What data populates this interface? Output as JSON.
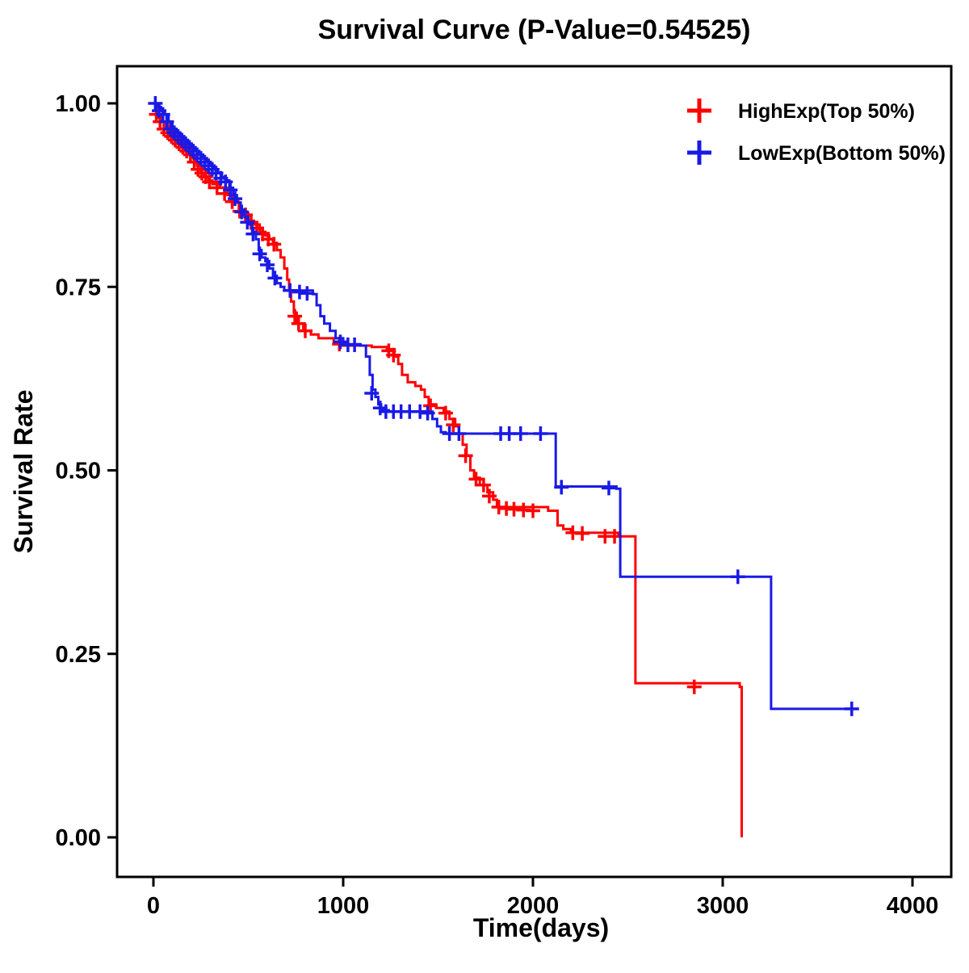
{
  "figure": {
    "background": "#ffffff",
    "border_color": "#000000",
    "text_color": "#000000"
  },
  "chart_data": {
    "type": "line",
    "subtype": "kaplan-meier-step-survival",
    "title": "Survival Curve (P-Value=0.54525)",
    "p_value": "0.54525",
    "xlabel": "Time(days)",
    "ylabel": "Survival Rate",
    "xlim": [
      0,
      4000
    ],
    "ylim": [
      0.0,
      1.0
    ],
    "x_ticks": [
      0,
      1000,
      2000,
      3000,
      4000
    ],
    "y_ticks": [
      {
        "value": 0.0,
        "label": "0.00"
      },
      {
        "value": 0.25,
        "label": "0.25"
      },
      {
        "value": 0.5,
        "label": "0.50"
      },
      {
        "value": 0.75,
        "label": "0.75"
      },
      {
        "value": 1.0,
        "label": "1.00"
      }
    ],
    "grid": false,
    "legend_position": "top-right",
    "legend": [
      {
        "label": "HighExp(Top 50%)",
        "color": "#ff0000",
        "marker": "plus"
      },
      {
        "label": "LowExp(Bottom 50%)",
        "color": "#1a1ae6",
        "marker": "plus"
      }
    ],
    "series": [
      {
        "name": "HighExp(Top 50%)",
        "color": "#ff0000",
        "steps": [
          [
            0,
            0.99
          ],
          [
            25,
            0.98
          ],
          [
            50,
            0.975
          ],
          [
            75,
            0.965
          ],
          [
            100,
            0.955
          ],
          [
            130,
            0.95
          ],
          [
            160,
            0.94
          ],
          [
            190,
            0.935
          ],
          [
            210,
            0.925
          ],
          [
            230,
            0.915
          ],
          [
            250,
            0.905
          ],
          [
            270,
            0.9
          ],
          [
            290,
            0.895
          ],
          [
            310,
            0.89
          ],
          [
            350,
            0.885
          ],
          [
            390,
            0.875
          ],
          [
            420,
            0.865
          ],
          [
            450,
            0.855
          ],
          [
            480,
            0.85
          ],
          [
            500,
            0.84
          ],
          [
            530,
            0.835
          ],
          [
            560,
            0.825
          ],
          [
            590,
            0.82
          ],
          [
            610,
            0.815
          ],
          [
            630,
            0.81
          ],
          [
            650,
            0.8
          ],
          [
            670,
            0.79
          ],
          [
            690,
            0.775
          ],
          [
            705,
            0.76
          ],
          [
            715,
            0.745
          ],
          [
            725,
            0.73
          ],
          [
            740,
            0.715
          ],
          [
            755,
            0.7
          ],
          [
            790,
            0.69
          ],
          [
            830,
            0.685
          ],
          [
            870,
            0.68
          ],
          [
            950,
            0.675
          ],
          [
            1000,
            0.67
          ],
          [
            1150,
            0.668
          ],
          [
            1230,
            0.665
          ],
          [
            1270,
            0.655
          ],
          [
            1290,
            0.645
          ],
          [
            1310,
            0.63
          ],
          [
            1340,
            0.62
          ],
          [
            1380,
            0.615
          ],
          [
            1410,
            0.61
          ],
          [
            1430,
            0.6
          ],
          [
            1450,
            0.59
          ],
          [
            1490,
            0.585
          ],
          [
            1530,
            0.58
          ],
          [
            1560,
            0.57
          ],
          [
            1590,
            0.56
          ],
          [
            1610,
            0.55
          ],
          [
            1630,
            0.535
          ],
          [
            1650,
            0.52
          ],
          [
            1670,
            0.5
          ],
          [
            1690,
            0.49
          ],
          [
            1720,
            0.48
          ],
          [
            1760,
            0.47
          ],
          [
            1790,
            0.46
          ],
          [
            1810,
            0.45
          ],
          [
            2080,
            0.445
          ],
          [
            2130,
            0.425
          ],
          [
            2160,
            0.42
          ],
          [
            2200,
            0.415
          ],
          [
            2450,
            0.41
          ],
          [
            2540,
            0.21
          ],
          [
            3090,
            0.205
          ],
          [
            3100,
            0.0
          ]
        ],
        "censors": [
          [
            15,
            0.985
          ],
          [
            35,
            0.975
          ],
          [
            55,
            0.965
          ],
          [
            75,
            0.96
          ],
          [
            95,
            0.955
          ],
          [
            115,
            0.95
          ],
          [
            135,
            0.945
          ],
          [
            155,
            0.94
          ],
          [
            175,
            0.935
          ],
          [
            195,
            0.93
          ],
          [
            215,
            0.92
          ],
          [
            235,
            0.91
          ],
          [
            255,
            0.905
          ],
          [
            275,
            0.9
          ],
          [
            295,
            0.893
          ],
          [
            335,
            0.885
          ],
          [
            375,
            0.877
          ],
          [
            415,
            0.866
          ],
          [
            455,
            0.853
          ],
          [
            485,
            0.848
          ],
          [
            515,
            0.838
          ],
          [
            545,
            0.83
          ],
          [
            575,
            0.822
          ],
          [
            605,
            0.815
          ],
          [
            635,
            0.808
          ],
          [
            745,
            0.71
          ],
          [
            765,
            0.7
          ],
          [
            800,
            0.69
          ],
          [
            980,
            0.672
          ],
          [
            1240,
            0.663
          ],
          [
            1265,
            0.657
          ],
          [
            1460,
            0.588
          ],
          [
            1540,
            0.578
          ],
          [
            1580,
            0.562
          ],
          [
            1645,
            0.52
          ],
          [
            1700,
            0.488
          ],
          [
            1740,
            0.48
          ],
          [
            1770,
            0.465
          ],
          [
            1820,
            0.45
          ],
          [
            1860,
            0.448
          ],
          [
            1900,
            0.447
          ],
          [
            1950,
            0.446
          ],
          [
            2000,
            0.445
          ],
          [
            2210,
            0.415
          ],
          [
            2260,
            0.414
          ],
          [
            2380,
            0.41
          ],
          [
            2430,
            0.41
          ],
          [
            2850,
            0.205
          ]
        ]
      },
      {
        "name": "LowExp(Bottom 50%)",
        "color": "#1a1ae6",
        "steps": [
          [
            0,
            1.0
          ],
          [
            20,
            0.995
          ],
          [
            40,
            0.99
          ],
          [
            60,
            0.985
          ],
          [
            80,
            0.975
          ],
          [
            100,
            0.965
          ],
          [
            120,
            0.96
          ],
          [
            140,
            0.955
          ],
          [
            160,
            0.95
          ],
          [
            180,
            0.945
          ],
          [
            200,
            0.94
          ],
          [
            220,
            0.935
          ],
          [
            240,
            0.93
          ],
          [
            260,
            0.925
          ],
          [
            280,
            0.92
          ],
          [
            300,
            0.915
          ],
          [
            320,
            0.91
          ],
          [
            340,
            0.905
          ],
          [
            360,
            0.9
          ],
          [
            380,
            0.895
          ],
          [
            400,
            0.885
          ],
          [
            420,
            0.875
          ],
          [
            440,
            0.865
          ],
          [
            460,
            0.855
          ],
          [
            480,
            0.845
          ],
          [
            500,
            0.835
          ],
          [
            520,
            0.825
          ],
          [
            540,
            0.815
          ],
          [
            555,
            0.8
          ],
          [
            570,
            0.79
          ],
          [
            590,
            0.785
          ],
          [
            610,
            0.775
          ],
          [
            630,
            0.765
          ],
          [
            650,
            0.755
          ],
          [
            670,
            0.75
          ],
          [
            690,
            0.745
          ],
          [
            840,
            0.74
          ],
          [
            860,
            0.725
          ],
          [
            880,
            0.71
          ],
          [
            900,
            0.7
          ],
          [
            930,
            0.69
          ],
          [
            960,
            0.68
          ],
          [
            1000,
            0.672
          ],
          [
            1090,
            0.67
          ],
          [
            1120,
            0.655
          ],
          [
            1140,
            0.63
          ],
          [
            1155,
            0.61
          ],
          [
            1170,
            0.6
          ],
          [
            1185,
            0.59
          ],
          [
            1200,
            0.582
          ],
          [
            1240,
            0.58
          ],
          [
            1470,
            0.57
          ],
          [
            1495,
            0.56
          ],
          [
            1515,
            0.552
          ],
          [
            1540,
            0.55
          ],
          [
            2100,
            0.55
          ],
          [
            2120,
            0.478
          ],
          [
            2440,
            0.475
          ],
          [
            2460,
            0.355
          ],
          [
            3240,
            0.355
          ],
          [
            3255,
            0.175
          ],
          [
            3690,
            0.175
          ]
        ],
        "censors": [
          [
            10,
            1.0
          ],
          [
            30,
            0.99
          ],
          [
            50,
            0.985
          ],
          [
            70,
            0.975
          ],
          [
            90,
            0.965
          ],
          [
            110,
            0.96
          ],
          [
            130,
            0.955
          ],
          [
            150,
            0.95
          ],
          [
            170,
            0.945
          ],
          [
            190,
            0.94
          ],
          [
            210,
            0.935
          ],
          [
            230,
            0.93
          ],
          [
            250,
            0.925
          ],
          [
            270,
            0.92
          ],
          [
            290,
            0.915
          ],
          [
            310,
            0.91
          ],
          [
            330,
            0.905
          ],
          [
            355,
            0.898
          ],
          [
            380,
            0.893
          ],
          [
            405,
            0.882
          ],
          [
            430,
            0.87
          ],
          [
            465,
            0.852
          ],
          [
            495,
            0.838
          ],
          [
            525,
            0.822
          ],
          [
            560,
            0.795
          ],
          [
            600,
            0.78
          ],
          [
            640,
            0.762
          ],
          [
            720,
            0.745
          ],
          [
            770,
            0.743
          ],
          [
            810,
            0.741
          ],
          [
            985,
            0.675
          ],
          [
            1025,
            0.671
          ],
          [
            1060,
            0.671
          ],
          [
            1150,
            0.605
          ],
          [
            1195,
            0.585
          ],
          [
            1225,
            0.58
          ],
          [
            1265,
            0.58
          ],
          [
            1305,
            0.58
          ],
          [
            1350,
            0.58
          ],
          [
            1405,
            0.58
          ],
          [
            1445,
            0.578
          ],
          [
            1560,
            0.55
          ],
          [
            1610,
            0.55
          ],
          [
            1830,
            0.55
          ],
          [
            1875,
            0.55
          ],
          [
            1935,
            0.55
          ],
          [
            2040,
            0.55
          ],
          [
            2150,
            0.477
          ],
          [
            2400,
            0.476
          ],
          [
            3080,
            0.355
          ],
          [
            3680,
            0.175
          ]
        ]
      }
    ]
  }
}
